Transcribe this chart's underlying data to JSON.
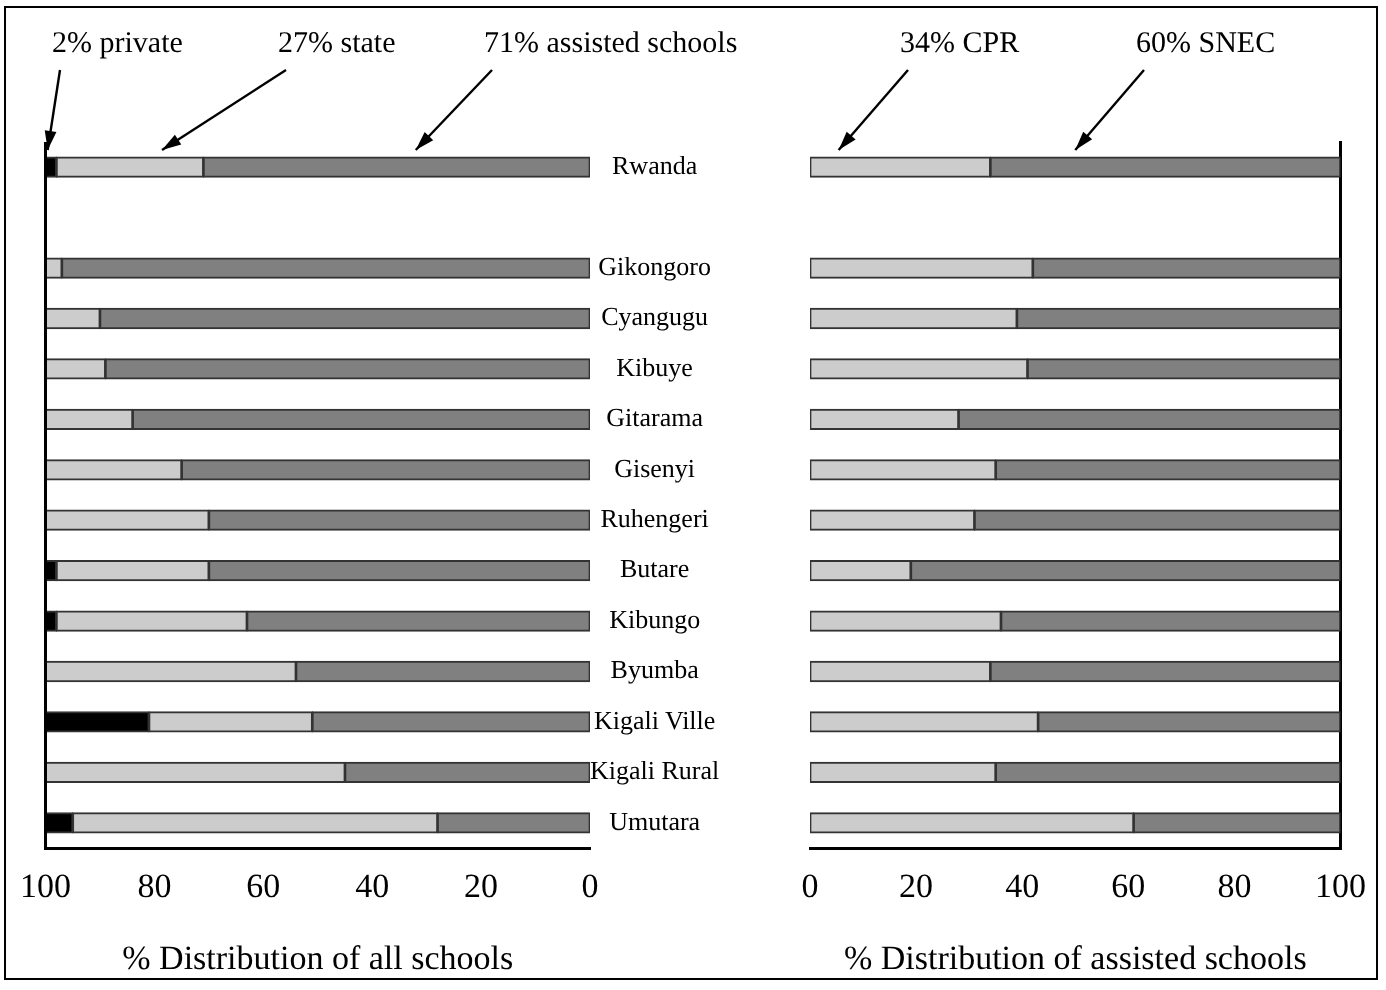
{
  "chart_data": [
    {
      "type": "bar",
      "orientation": "horizontal",
      "stacked": true,
      "xlabel": "% Distribution of all schools",
      "xlim": [
        100,
        0
      ],
      "xticks": [
        100,
        80,
        60,
        40,
        20,
        0
      ],
      "grid": false,
      "categories": [
        "Rwanda",
        null,
        "Gikongoro",
        "Cyangugu",
        "Kibuye",
        "Gitarama",
        "Gisenyi",
        "Ruhengeri",
        "Butare",
        "Kibungo",
        "Byumba",
        "Kigali Ville",
        "Kigali Rural",
        "Umutara"
      ],
      "series": [
        {
          "color": "#808080",
          "values": [
            71,
            null,
            97,
            90,
            89,
            84,
            75,
            70,
            70,
            63,
            54,
            51,
            45,
            28
          ]
        },
        {
          "color": "#cccccc",
          "values": [
            27,
            null,
            3,
            10,
            11,
            16,
            25,
            30,
            28,
            35,
            46,
            30,
            55,
            67
          ]
        },
        {
          "color": "#000000",
          "values": [
            2,
            null,
            0,
            0,
            0,
            0,
            0,
            0,
            2,
            2,
            0,
            19,
            0,
            5
          ]
        }
      ],
      "annotations": [
        "2% private",
        "27% state",
        "71% assisted schools"
      ]
    },
    {
      "type": "bar",
      "orientation": "horizontal",
      "stacked": true,
      "xlabel": "% Distribution of assisted schools",
      "xlim": [
        0,
        100
      ],
      "xticks": [
        0,
        20,
        40,
        60,
        80,
        100
      ],
      "grid": false,
      "categories": [
        null,
        null,
        null,
        null,
        null,
        null,
        null,
        null,
        null,
        null,
        null,
        null,
        null,
        null
      ],
      "series": [
        {
          "color": "#cccccc",
          "values": [
            34,
            null,
            42,
            39,
            41,
            28,
            35,
            31,
            19,
            36,
            34,
            43,
            35,
            61
          ]
        },
        {
          "color": "#808080",
          "values": [
            66,
            null,
            58,
            61,
            59,
            72,
            65,
            69,
            81,
            64,
            66,
            57,
            65,
            39
          ]
        }
      ],
      "annotations": [
        "34% CPR",
        "60% SNEC"
      ]
    }
  ]
}
